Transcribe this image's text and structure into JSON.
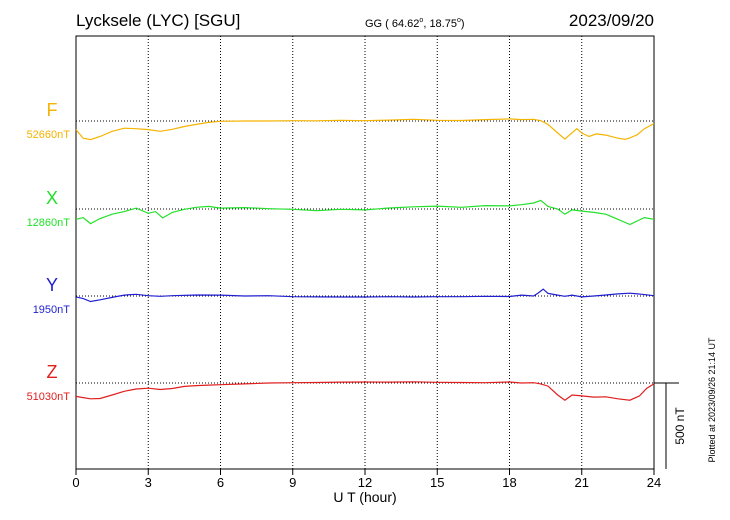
{
  "header": {
    "station": "Lycksele (LYC)  [SGU]",
    "coords_prefix": "GG ( 64.62",
    "coords_mid": ",  18.75",
    "coords_suffix": ")",
    "degree_mark": "o",
    "date": "2023/09/20"
  },
  "footer": {
    "plotted": "Plotted at 2023/09/26 21:14 UT"
  },
  "chart_data": {
    "type": "line",
    "xlabel": "U T (hour)",
    "xlim": [
      0,
      24
    ],
    "xticks": [
      0,
      3,
      6,
      9,
      12,
      15,
      18,
      21,
      24
    ],
    "scale_bar": {
      "label": "500 nT",
      "value": 500
    },
    "colors": {
      "F": "#f5b400",
      "X": "#22e02a",
      "Y": "#1f1fd0",
      "Z": "#e01e1e"
    },
    "series": [
      {
        "name": "F",
        "baseline_label": "52660nT",
        "baseline": 52660,
        "points": [
          [
            0,
            52610
          ],
          [
            0.3,
            52560
          ],
          [
            0.6,
            52552
          ],
          [
            1.0,
            52570
          ],
          [
            1.5,
            52600
          ],
          [
            2.0,
            52618
          ],
          [
            2.5,
            52615
          ],
          [
            3.0,
            52610
          ],
          [
            3.5,
            52600
          ],
          [
            4.0,
            52612
          ],
          [
            4.5,
            52628
          ],
          [
            5.0,
            52640
          ],
          [
            5.5,
            52652
          ],
          [
            6.0,
            52658
          ],
          [
            7.0,
            52660
          ],
          [
            8.0,
            52660
          ],
          [
            9.0,
            52662
          ],
          [
            10.0,
            52661
          ],
          [
            11.0,
            52664
          ],
          [
            12.0,
            52662
          ],
          [
            13.0,
            52665
          ],
          [
            14.0,
            52670
          ],
          [
            15.0,
            52664
          ],
          [
            16.0,
            52663
          ],
          [
            17.0,
            52668
          ],
          [
            18.0,
            52672
          ],
          [
            18.5,
            52668
          ],
          [
            19.0,
            52670
          ],
          [
            19.3,
            52662
          ],
          [
            19.6,
            52640
          ],
          [
            20.0,
            52590
          ],
          [
            20.3,
            52555
          ],
          [
            20.5,
            52580
          ],
          [
            20.8,
            52615
          ],
          [
            21.0,
            52590
          ],
          [
            21.3,
            52570
          ],
          [
            21.6,
            52585
          ],
          [
            22.0,
            52578
          ],
          [
            22.5,
            52560
          ],
          [
            22.8,
            52553
          ],
          [
            23.0,
            52562
          ],
          [
            23.3,
            52580
          ],
          [
            23.6,
            52615
          ],
          [
            24.0,
            52645
          ]
        ]
      },
      {
        "name": "X",
        "baseline_label": "12860nT",
        "baseline": 12860,
        "points": [
          [
            0,
            12800
          ],
          [
            0.3,
            12810
          ],
          [
            0.6,
            12775
          ],
          [
            1.0,
            12805
          ],
          [
            1.5,
            12830
          ],
          [
            2.0,
            12845
          ],
          [
            2.5,
            12865
          ],
          [
            3.0,
            12835
          ],
          [
            3.3,
            12845
          ],
          [
            3.6,
            12808
          ],
          [
            4.0,
            12840
          ],
          [
            4.5,
            12858
          ],
          [
            5.0,
            12870
          ],
          [
            5.5,
            12875
          ],
          [
            6.0,
            12865
          ],
          [
            7.0,
            12868
          ],
          [
            8.0,
            12862
          ],
          [
            9.0,
            12858
          ],
          [
            10.0,
            12850
          ],
          [
            11.0,
            12858
          ],
          [
            12.0,
            12855
          ],
          [
            13.0,
            12866
          ],
          [
            14.0,
            12873
          ],
          [
            15.0,
            12877
          ],
          [
            16.0,
            12870
          ],
          [
            17.0,
            12880
          ],
          [
            18.0,
            12878
          ],
          [
            18.5,
            12885
          ],
          [
            19.0,
            12895
          ],
          [
            19.3,
            12910
          ],
          [
            19.6,
            12875
          ],
          [
            20.0,
            12860
          ],
          [
            20.3,
            12830
          ],
          [
            20.6,
            12855
          ],
          [
            21.0,
            12848
          ],
          [
            21.5,
            12840
          ],
          [
            22.0,
            12830
          ],
          [
            22.5,
            12800
          ],
          [
            23.0,
            12770
          ],
          [
            23.3,
            12790
          ],
          [
            23.6,
            12810
          ],
          [
            24.0,
            12800
          ]
        ]
      },
      {
        "name": "Y",
        "baseline_label": "1950nT",
        "baseline": 1950,
        "points": [
          [
            0,
            1945
          ],
          [
            0.3,
            1935
          ],
          [
            0.6,
            1918
          ],
          [
            1.0,
            1928
          ],
          [
            1.5,
            1942
          ],
          [
            2.0,
            1955
          ],
          [
            2.5,
            1960
          ],
          [
            3.0,
            1952
          ],
          [
            3.5,
            1948
          ],
          [
            4.0,
            1952
          ],
          [
            5.0,
            1956
          ],
          [
            6.0,
            1955
          ],
          [
            7.0,
            1950
          ],
          [
            8.0,
            1952
          ],
          [
            9.0,
            1946
          ],
          [
            10.0,
            1945
          ],
          [
            11.0,
            1944
          ],
          [
            12.0,
            1944
          ],
          [
            13.0,
            1946
          ],
          [
            14.0,
            1944
          ],
          [
            15.0,
            1946
          ],
          [
            16.0,
            1946
          ],
          [
            17.0,
            1948
          ],
          [
            18.0,
            1947
          ],
          [
            18.5,
            1955
          ],
          [
            19.0,
            1950
          ],
          [
            19.2,
            1968
          ],
          [
            19.4,
            1990
          ],
          [
            19.6,
            1965
          ],
          [
            20.0,
            1955
          ],
          [
            20.3,
            1948
          ],
          [
            20.6,
            1955
          ],
          [
            21.0,
            1945
          ],
          [
            21.5,
            1950
          ],
          [
            22.0,
            1956
          ],
          [
            22.5,
            1962
          ],
          [
            23.0,
            1966
          ],
          [
            23.5,
            1960
          ],
          [
            24.0,
            1952
          ]
        ]
      },
      {
        "name": "Z",
        "baseline_label": "51030nT",
        "baseline": 51030,
        "points": [
          [
            0,
            50952
          ],
          [
            0.3,
            50945
          ],
          [
            0.6,
            50938
          ],
          [
            1.0,
            50940
          ],
          [
            1.5,
            50960
          ],
          [
            2.0,
            50982
          ],
          [
            2.5,
            50995
          ],
          [
            3.0,
            51000
          ],
          [
            3.5,
            50992
          ],
          [
            4.0,
            50998
          ],
          [
            4.5,
            51010
          ],
          [
            5.0,
            51015
          ],
          [
            5.5,
            51018
          ],
          [
            6.0,
            51020
          ],
          [
            7.0,
            51025
          ],
          [
            8.0,
            51030
          ],
          [
            9.0,
            51032
          ],
          [
            10.0,
            51033
          ],
          [
            11.0,
            51035
          ],
          [
            12.0,
            51036
          ],
          [
            13.0,
            51035
          ],
          [
            14.0,
            51037
          ],
          [
            15.0,
            51034
          ],
          [
            16.0,
            51033
          ],
          [
            17.0,
            51032
          ],
          [
            18.0,
            51036
          ],
          [
            18.5,
            51030
          ],
          [
            19.0,
            51032
          ],
          [
            19.3,
            51025
          ],
          [
            19.6,
            51012
          ],
          [
            20.0,
            50960
          ],
          [
            20.3,
            50930
          ],
          [
            20.6,
            50960
          ],
          [
            21.0,
            50955
          ],
          [
            21.5,
            50948
          ],
          [
            22.0,
            50950
          ],
          [
            22.5,
            50938
          ],
          [
            23.0,
            50930
          ],
          [
            23.4,
            50955
          ],
          [
            23.7,
            51000
          ],
          [
            24.0,
            51025
          ]
        ]
      }
    ]
  }
}
